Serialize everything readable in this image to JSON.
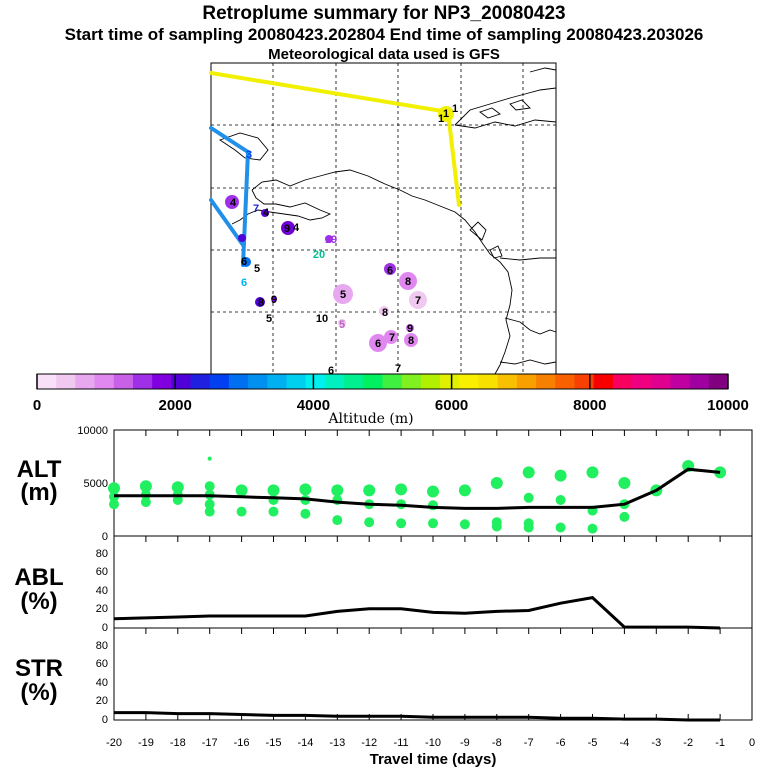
{
  "header": {
    "title": "Retroplume summary for NP3_20080423",
    "times": "Start time of sampling 20080423.202804      End time of sampling 20080423.203026",
    "met": "Meteorological data used is GFS"
  },
  "colorbar": {
    "label": "Altitude (m)",
    "ticks": [
      "0",
      "2000",
      "4000",
      "6000",
      "8000",
      "10000"
    ],
    "colors": [
      "#f8e0f8",
      "#f0c8f0",
      "#e8a8f0",
      "#e088f0",
      "#c860e8",
      "#a030e8",
      "#8000e0",
      "#5000d8",
      "#2020e0",
      "#0040f0",
      "#0070f0",
      "#0090f0",
      "#00b0f0",
      "#00d0f0",
      "#00f0f0",
      "#00f0c0",
      "#00f090",
      "#00f060",
      "#40f040",
      "#80f020",
      "#b0f000",
      "#e0f000",
      "#f8f000",
      "#f8e000",
      "#f8c000",
      "#f8a000",
      "#f88000",
      "#f86000",
      "#f84000",
      "#f80000",
      "#f80060",
      "#f00080",
      "#e00090",
      "#c000a0",
      "#a000a0",
      "#800080"
    ]
  },
  "map": {
    "labels": [
      {
        "t": "1",
        "c": "#000000"
      },
      {
        "t": "1",
        "c": "#000000"
      },
      {
        "t": "1",
        "c": "#000000"
      },
      {
        "t": "3",
        "c": "#0040f0"
      },
      {
        "t": "4",
        "c": "#000000"
      },
      {
        "t": "7",
        "c": "#2020e0"
      },
      {
        "t": "4",
        "c": "#000000"
      },
      {
        "t": "9",
        "c": "#000000"
      },
      {
        "t": "4",
        "c": "#000000"
      },
      {
        "t": "19",
        "c": "#a030e8"
      },
      {
        "t": "20",
        "c": "#00c090"
      },
      {
        "t": "6",
        "c": "#000000"
      },
      {
        "t": "5",
        "c": "#000000"
      },
      {
        "t": "6",
        "c": "#00b0f0"
      },
      {
        "t": "8",
        "c": "#000000"
      },
      {
        "t": "9",
        "c": "#000000"
      },
      {
        "t": "5",
        "c": "#000000"
      },
      {
        "t": "10",
        "c": "#000000"
      },
      {
        "t": "5",
        "c": "#c060c0"
      },
      {
        "t": "5",
        "c": "#000000"
      },
      {
        "t": "8",
        "c": "#000000"
      },
      {
        "t": "7",
        "c": "#000000"
      },
      {
        "t": "6",
        "c": "#000000"
      },
      {
        "t": "9",
        "c": "#000000"
      },
      {
        "t": "6",
        "c": "#000000"
      },
      {
        "t": "7",
        "c": "#000000"
      },
      {
        "t": "8",
        "c": "#000000"
      },
      {
        "t": "6",
        "c": "#000000"
      },
      {
        "t": "8",
        "c": "#000000"
      },
      {
        "t": "7",
        "c": "#000000"
      }
    ]
  },
  "panels": {
    "alt": {
      "label_top": "ALT",
      "label_bottom": "(m)",
      "yticks": [
        "10000",
        "5000",
        "0"
      ]
    },
    "abl": {
      "label_top": "ABL",
      "label_bottom": "(%)",
      "yticks": [
        "80",
        "60",
        "40",
        "20",
        "0"
      ]
    },
    "str": {
      "label_top": "STR",
      "label_bottom": "(%)",
      "yticks": [
        "80",
        "60",
        "40",
        "20",
        "0"
      ]
    }
  },
  "chart_data": {
    "type": "line",
    "title": "Retroplume summary for NP3_20080423",
    "xlabel": "Travel time (days)",
    "xlim": [
      -20,
      0
    ],
    "x_ticks": [
      "-20",
      "-19",
      "-18",
      "-17",
      "-16",
      "-15",
      "-14",
      "-13",
      "-12",
      "-11",
      "-10",
      "-9",
      "-8",
      "-7",
      "-6",
      "-5",
      "-4",
      "-3",
      "-2",
      "-1",
      "0"
    ],
    "series": [
      {
        "name": "ALT",
        "ylabel": "ALT (m)",
        "ylim": [
          0,
          10000
        ],
        "x": [
          -20,
          -19,
          -18,
          -17,
          -16,
          -15,
          -14,
          -13,
          -12,
          -11,
          -10,
          -9,
          -8,
          -7,
          -6,
          -5,
          -4,
          -3,
          -2,
          -1
        ],
        "values": [
          3800,
          3800,
          3800,
          3800,
          3700,
          3600,
          3500,
          3200,
          3000,
          2900,
          2700,
          2600,
          2600,
          2700,
          2700,
          2700,
          3000,
          4300,
          6300,
          6000
        ],
        "clusters": [
          {
            "x": -20,
            "y": [
              4500,
              3700,
              3000
            ]
          },
          {
            "x": -19,
            "y": [
              4700,
              3900,
              3200
            ]
          },
          {
            "x": -18,
            "y": [
              4600,
              3900,
              3400
            ]
          },
          {
            "x": -17,
            "y": [
              7300,
              4700,
              3900,
              3000,
              2300
            ]
          },
          {
            "x": -16,
            "y": [
              4300,
              2300
            ]
          },
          {
            "x": -15,
            "y": [
              4300,
              3400,
              2300
            ]
          },
          {
            "x": -14,
            "y": [
              4400,
              3400,
              2100
            ]
          },
          {
            "x": -13,
            "y": [
              4300,
              3400,
              1500
            ]
          },
          {
            "x": -12,
            "y": [
              4300,
              3000,
              1300
            ]
          },
          {
            "x": -11,
            "y": [
              4400,
              3000,
              1200
            ]
          },
          {
            "x": -10,
            "y": [
              4200,
              2900,
              1200
            ]
          },
          {
            "x": -9,
            "y": [
              4300,
              1100
            ]
          },
          {
            "x": -8,
            "y": [
              5000,
              1300,
              900
            ]
          },
          {
            "x": -7,
            "y": [
              6000,
              3600,
              1200,
              800
            ]
          },
          {
            "x": -6,
            "y": [
              5700,
              3400,
              800
            ]
          },
          {
            "x": -5,
            "y": [
              6000,
              2400,
              700
            ]
          },
          {
            "x": -4,
            "y": [
              5000,
              3000,
              1800
            ]
          },
          {
            "x": -3,
            "y": [
              4300
            ]
          },
          {
            "x": -2,
            "y": [
              6600
            ]
          },
          {
            "x": -1,
            "y": [
              6000
            ]
          }
        ]
      },
      {
        "name": "ABL",
        "ylabel": "ABL (%)",
        "ylim": [
          0,
          100
        ],
        "x": [
          -20,
          -19,
          -18,
          -17,
          -16,
          -15,
          -14,
          -13,
          -12,
          -11,
          -10,
          -9,
          -8,
          -7,
          -6,
          -5,
          -4,
          -3,
          -2,
          -1
        ],
        "values": [
          10,
          11,
          12,
          13,
          13,
          13,
          13,
          18,
          21,
          21,
          17,
          16,
          18,
          19,
          27,
          33,
          1,
          1,
          1,
          0
        ]
      },
      {
        "name": "STR",
        "ylabel": "STR (%)",
        "ylim": [
          0,
          100
        ],
        "x": [
          -20,
          -19,
          -18,
          -17,
          -16,
          -15,
          -14,
          -13,
          -12,
          -11,
          -10,
          -9,
          -8,
          -7,
          -6,
          -5,
          -4,
          -3,
          -2,
          -1
        ],
        "values": [
          8,
          8,
          7,
          7,
          6,
          5,
          5,
          4,
          4,
          4,
          3,
          3,
          3,
          3,
          2,
          2,
          1,
          1,
          0,
          0
        ]
      }
    ]
  }
}
